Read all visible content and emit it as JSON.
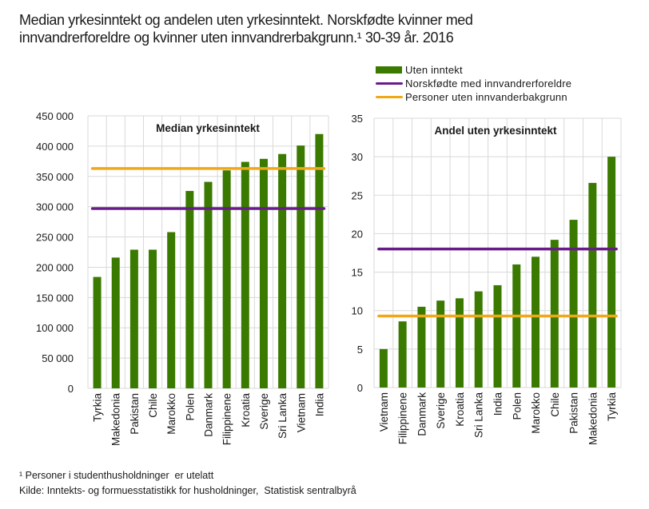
{
  "title_lines": [
    "Median yrkesinntekt og andelen uten yrkesinntekt. Norskfødte kvinner med",
    "innvandrerforeldre og kvinner uten innvandrerbakgrunn.¹ 30-39 år. 2016"
  ],
  "legend": [
    {
      "label": "Uten inntekt",
      "kind": "bar",
      "color": "#3a7a00"
    },
    {
      "label": "Norskfødte med innvandrerforeldre",
      "kind": "line",
      "color": "#6a1b8a"
    },
    {
      "label": "Personer uten innvanderbakgrunn",
      "kind": "line",
      "color": "#f0a818"
    }
  ],
  "colors": {
    "bar": "#3a7a00",
    "purple": "#6a1b8a",
    "orange": "#f0a818",
    "grid": "#d9d9d9",
    "text": "#1a1a1a"
  },
  "chart_data": [
    {
      "type": "bar",
      "title": "Median yrkesinntekt",
      "xlabel": "",
      "ylabel": "",
      "ylim": [
        0,
        450000
      ],
      "yticks": [
        0,
        50000,
        100000,
        150000,
        200000,
        250000,
        300000,
        350000,
        400000,
        450000
      ],
      "ytick_labels": [
        "0",
        "50 000",
        "100 000",
        "150 000",
        "200 000",
        "250 000",
        "300 000",
        "350 000",
        "400 000",
        "450 000"
      ],
      "grid": true,
      "categories": [
        "Tyrkia",
        "Makedonia",
        "Pakistan",
        "Chile",
        "Marokko",
        "Polen",
        "Danmark",
        "Filippinene",
        "Kroatia",
        "Sverige",
        "Sri Lanka",
        "Vietnam",
        "India"
      ],
      "series": [
        {
          "name": "Uten inntekt",
          "values": [
            184000,
            216000,
            229000,
            229000,
            258000,
            326000,
            341000,
            360000,
            374000,
            379000,
            387000,
            401000,
            420000
          ]
        }
      ],
      "reference_lines": [
        {
          "name": "Norskfødte med innvandrerforeldre",
          "value": 297000
        },
        {
          "name": "Personer uten innvanderbakgrunn",
          "value": 363000
        }
      ]
    },
    {
      "type": "bar",
      "title": "Andel uten yrkesinntekt",
      "xlabel": "",
      "ylabel": "",
      "ylim": [
        0,
        35
      ],
      "yticks": [
        0,
        5,
        10,
        15,
        20,
        25,
        30,
        35
      ],
      "ytick_labels": [
        "0",
        "5",
        "10",
        "15",
        "20",
        "25",
        "30",
        "35"
      ],
      "grid": true,
      "categories": [
        "Vietnam",
        "Filippinene",
        "Danmark",
        "Sverige",
        "Kroatia",
        "Sri Lanka",
        "India",
        "Polen",
        "Marokko",
        "Chile",
        "Pakistan",
        "Makedonia",
        "Tyrkia"
      ],
      "series": [
        {
          "name": "Uten inntekt",
          "values": [
            5.0,
            8.6,
            10.5,
            11.3,
            11.6,
            12.5,
            13.3,
            16.0,
            17.0,
            19.2,
            21.8,
            26.6,
            30.0
          ]
        }
      ],
      "reference_lines": [
        {
          "name": "Norskfødte med innvandrerforeldre",
          "value": 18.0
        },
        {
          "name": "Personer uten innvanderbakgrunn",
          "value": 9.3
        }
      ]
    }
  ],
  "footnote": "¹ Personer i studenthusholdninger  er utelatt",
  "source": "Kilde: Inntekts- og formuesstatistikk for husholdninger,  Statistisk sentralbyrå"
}
